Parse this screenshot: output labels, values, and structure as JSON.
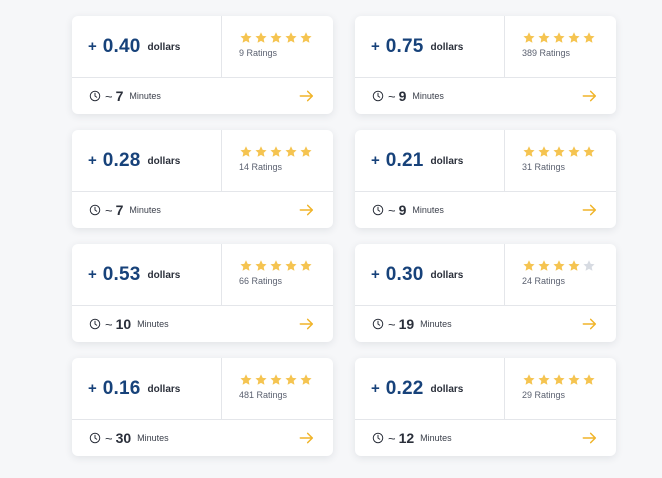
{
  "colors": {
    "accent_blue": "#17427a",
    "star_filled": "#f5c451",
    "star_empty": "#d7dbe2",
    "arrow": "#f0b429"
  },
  "cards": [
    {
      "plus": "+",
      "amount": "0.40",
      "currency": "dollars",
      "stars_filled": 5,
      "ratings": "9 Ratings",
      "tilde": "~",
      "minutes": "7",
      "unit": "Minutes"
    },
    {
      "plus": "+",
      "amount": "0.75",
      "currency": "dollars",
      "stars_filled": 5,
      "ratings": "389 Ratings",
      "tilde": "~",
      "minutes": "9",
      "unit": "Minutes"
    },
    {
      "plus": "+",
      "amount": "0.28",
      "currency": "dollars",
      "stars_filled": 5,
      "ratings": "14 Ratings",
      "tilde": "~",
      "minutes": "7",
      "unit": "Minutes"
    },
    {
      "plus": "+",
      "amount": "0.21",
      "currency": "dollars",
      "stars_filled": 5,
      "ratings": "31 Ratings",
      "tilde": "~",
      "minutes": "9",
      "unit": "Minutes"
    },
    {
      "plus": "+",
      "amount": "0.53",
      "currency": "dollars",
      "stars_filled": 5,
      "ratings": "66 Ratings",
      "tilde": "~",
      "minutes": "10",
      "unit": "Minutes"
    },
    {
      "plus": "+",
      "amount": "0.30",
      "currency": "dollars",
      "stars_filled": 4,
      "ratings": "24 Ratings",
      "tilde": "~",
      "minutes": "19",
      "unit": "Minutes"
    },
    {
      "plus": "+",
      "amount": "0.16",
      "currency": "dollars",
      "stars_filled": 5,
      "ratings": "481 Ratings",
      "tilde": "~",
      "minutes": "30",
      "unit": "Minutes"
    },
    {
      "plus": "+",
      "amount": "0.22",
      "currency": "dollars",
      "stars_filled": 5,
      "ratings": "29 Ratings",
      "tilde": "~",
      "minutes": "12",
      "unit": "Minutes"
    }
  ],
  "icons": {
    "star": "star-icon",
    "clock": "clock-icon",
    "arrow": "arrow-right-icon"
  }
}
